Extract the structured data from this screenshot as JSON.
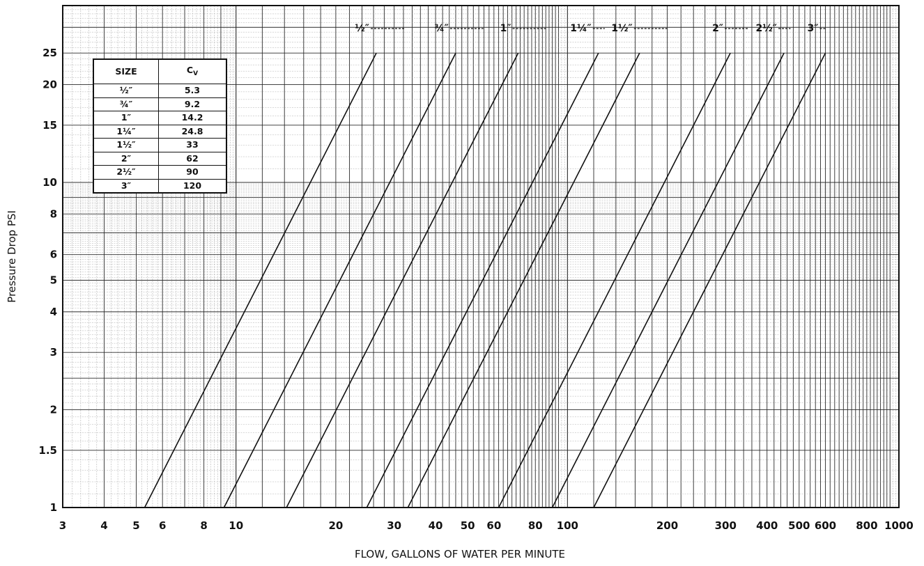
{
  "chart_data": {
    "type": "line",
    "title": "",
    "xlabel": "FLOW, GALLONS OF WATER PER MINUTE",
    "ylabel": "Pressure Drop PSI",
    "x_scale": "log",
    "y_scale": "log",
    "xlim": [
      3,
      1000
    ],
    "ylim": [
      1,
      25
    ],
    "grid": true,
    "x_ticks": [
      "3",
      "4",
      "5",
      "6",
      "8",
      "10",
      "20",
      "30",
      "40",
      "50",
      "60",
      "80",
      "100",
      "200",
      "300",
      "400",
      "500",
      "600",
      "800",
      "1000"
    ],
    "x_tick_values": [
      3,
      4,
      5,
      6,
      8,
      10,
      20,
      30,
      40,
      50,
      60,
      80,
      100,
      200,
      300,
      400,
      500,
      600,
      800,
      1000
    ],
    "y_ticks": [
      "1",
      "1.5",
      "2",
      "3",
      "4",
      "5",
      "6",
      "8",
      "10",
      "15",
      "20",
      "25"
    ],
    "y_tick_values": [
      1,
      1.5,
      2,
      3,
      4,
      5,
      6,
      8,
      10,
      15,
      20,
      25
    ],
    "series": [
      {
        "name": "½″",
        "cv": 5.3,
        "points": [
          [
            5.3,
            1
          ],
          [
            26.5,
            25
          ]
        ]
      },
      {
        "name": "¾″",
        "cv": 9.2,
        "points": [
          [
            9.2,
            1
          ],
          [
            46,
            25
          ]
        ]
      },
      {
        "name": "1″",
        "cv": 14.2,
        "points": [
          [
            14.2,
            1
          ],
          [
            71,
            25
          ]
        ]
      },
      {
        "name": "1¼″",
        "cv": 24.8,
        "points": [
          [
            24.8,
            1
          ],
          [
            124,
            25
          ]
        ]
      },
      {
        "name": "1½″",
        "cv": 33,
        "points": [
          [
            33,
            1
          ],
          [
            165,
            25
          ]
        ]
      },
      {
        "name": "2″",
        "cv": 62,
        "points": [
          [
            62,
            1
          ],
          [
            310,
            25
          ]
        ]
      },
      {
        "name": "2½″",
        "cv": 90,
        "points": [
          [
            90,
            1
          ],
          [
            450,
            25
          ]
        ]
      },
      {
        "name": "3″",
        "cv": 120,
        "points": [
          [
            120,
            1
          ],
          [
            600,
            25
          ]
        ]
      }
    ]
  },
  "table": {
    "header_size": "SIZE",
    "header_cv_main": "C",
    "header_cv_sub": "V",
    "rows": [
      {
        "size": "½″",
        "cv": "5.3"
      },
      {
        "size": "¾″",
        "cv": "9.2"
      },
      {
        "size": "1″",
        "cv": "14.2"
      },
      {
        "size": "1¼″",
        "cv": "24.8"
      },
      {
        "size": "1½″",
        "cv": "33"
      },
      {
        "size": "2″",
        "cv": "62"
      },
      {
        "size": "2½″",
        "cv": "90"
      },
      {
        "size": "3″",
        "cv": "120"
      }
    ]
  },
  "colors": {
    "line": "#111111",
    "grid_minor": "#9a9a9a",
    "grid_major": "#2a2a2a",
    "frame": "#111111"
  }
}
